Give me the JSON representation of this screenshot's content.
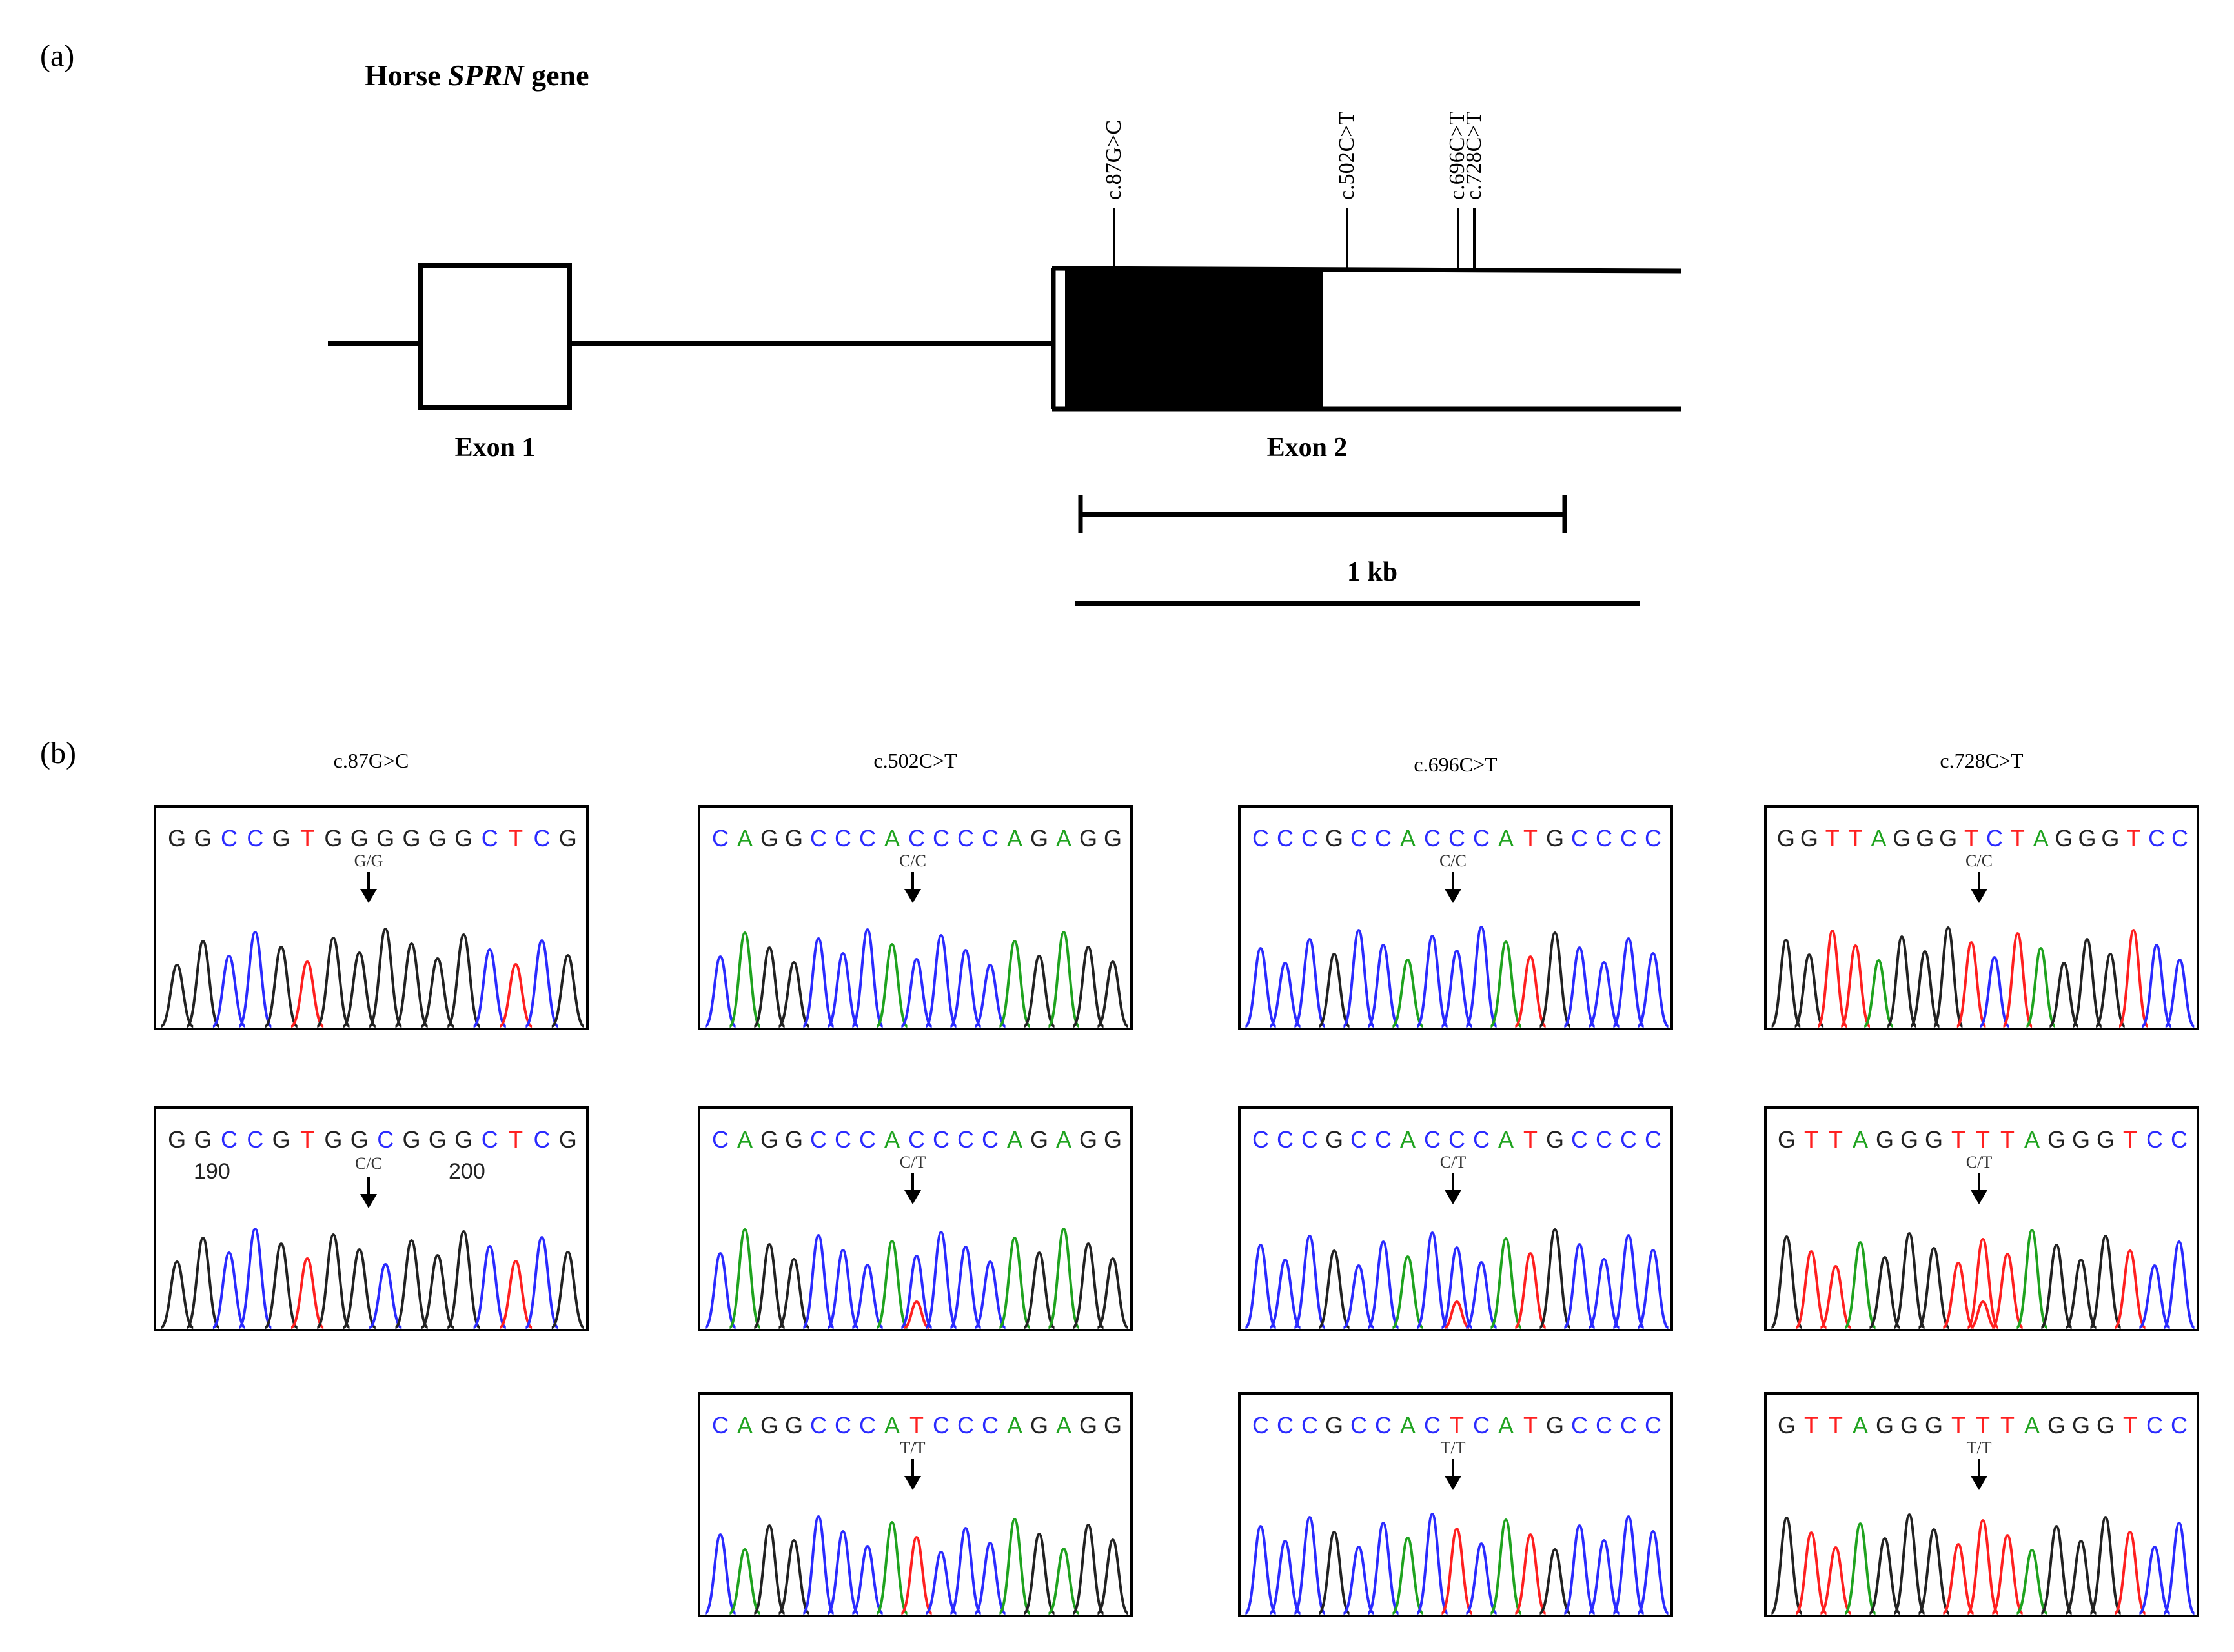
{
  "panel_a": {
    "label": "(a)",
    "title_prefix": "Horse ",
    "title_gene": "SPRN",
    "title_suffix": " gene",
    "exon1_label": "Exon 1",
    "exon2_label": "Exon 2",
    "scale_label": "1 kb",
    "snps": [
      "c.87G>C",
      "c.502C>T",
      "c.696C>T",
      "c.728C>T"
    ]
  },
  "panel_b": {
    "label": "(b)",
    "colors": {
      "A": "#1fa31f",
      "C": "#2b2bff",
      "G": "#222222",
      "T": "#ff2020"
    },
    "columns": [
      {
        "title": "c.87G>C",
        "traces": [
          {
            "sequence": "GGCCGTGGGGGGCTCG",
            "genotype": "G/G",
            "position_labels": []
          },
          {
            "sequence": "GGCCGTGGCGGGCTCG",
            "genotype": "C/C",
            "position_labels": [
              "190",
              "200"
            ]
          }
        ]
      },
      {
        "title": "c.502C>T",
        "traces": [
          {
            "sequence": "CAGGCCCACCCCAGAGG",
            "genotype": "C/C",
            "position_labels": []
          },
          {
            "sequence": "CAGGCCCACCCCAGAGG",
            "genotype": "C/T",
            "position_labels": []
          },
          {
            "sequence": "CAGGCCCATCCCAGAGG",
            "genotype": "T/T",
            "position_labels": []
          }
        ]
      },
      {
        "title": "c.696C>T",
        "traces": [
          {
            "sequence": "CCCGCCACCCATGCCCC",
            "genotype": "C/C",
            "position_labels": []
          },
          {
            "sequence": "CCCGCCACCCATGCCCC",
            "genotype": "C/T",
            "position_labels": []
          },
          {
            "sequence": "CCCGCCACTCATGCCCC",
            "genotype": "T/T",
            "position_labels": []
          }
        ]
      },
      {
        "title": "c.728C>T",
        "traces": [
          {
            "sequence": "GGTTAGGGTCTAGGGTCC",
            "genotype": "C/C",
            "position_labels": []
          },
          {
            "sequence": "GTTAGGGTTTAGGGTCC",
            "genotype": "C/T",
            "position_labels": []
          },
          {
            "sequence": "GTTAGGGTTTAGGGTCC",
            "genotype": "T/T",
            "position_labels": []
          }
        ]
      }
    ]
  }
}
